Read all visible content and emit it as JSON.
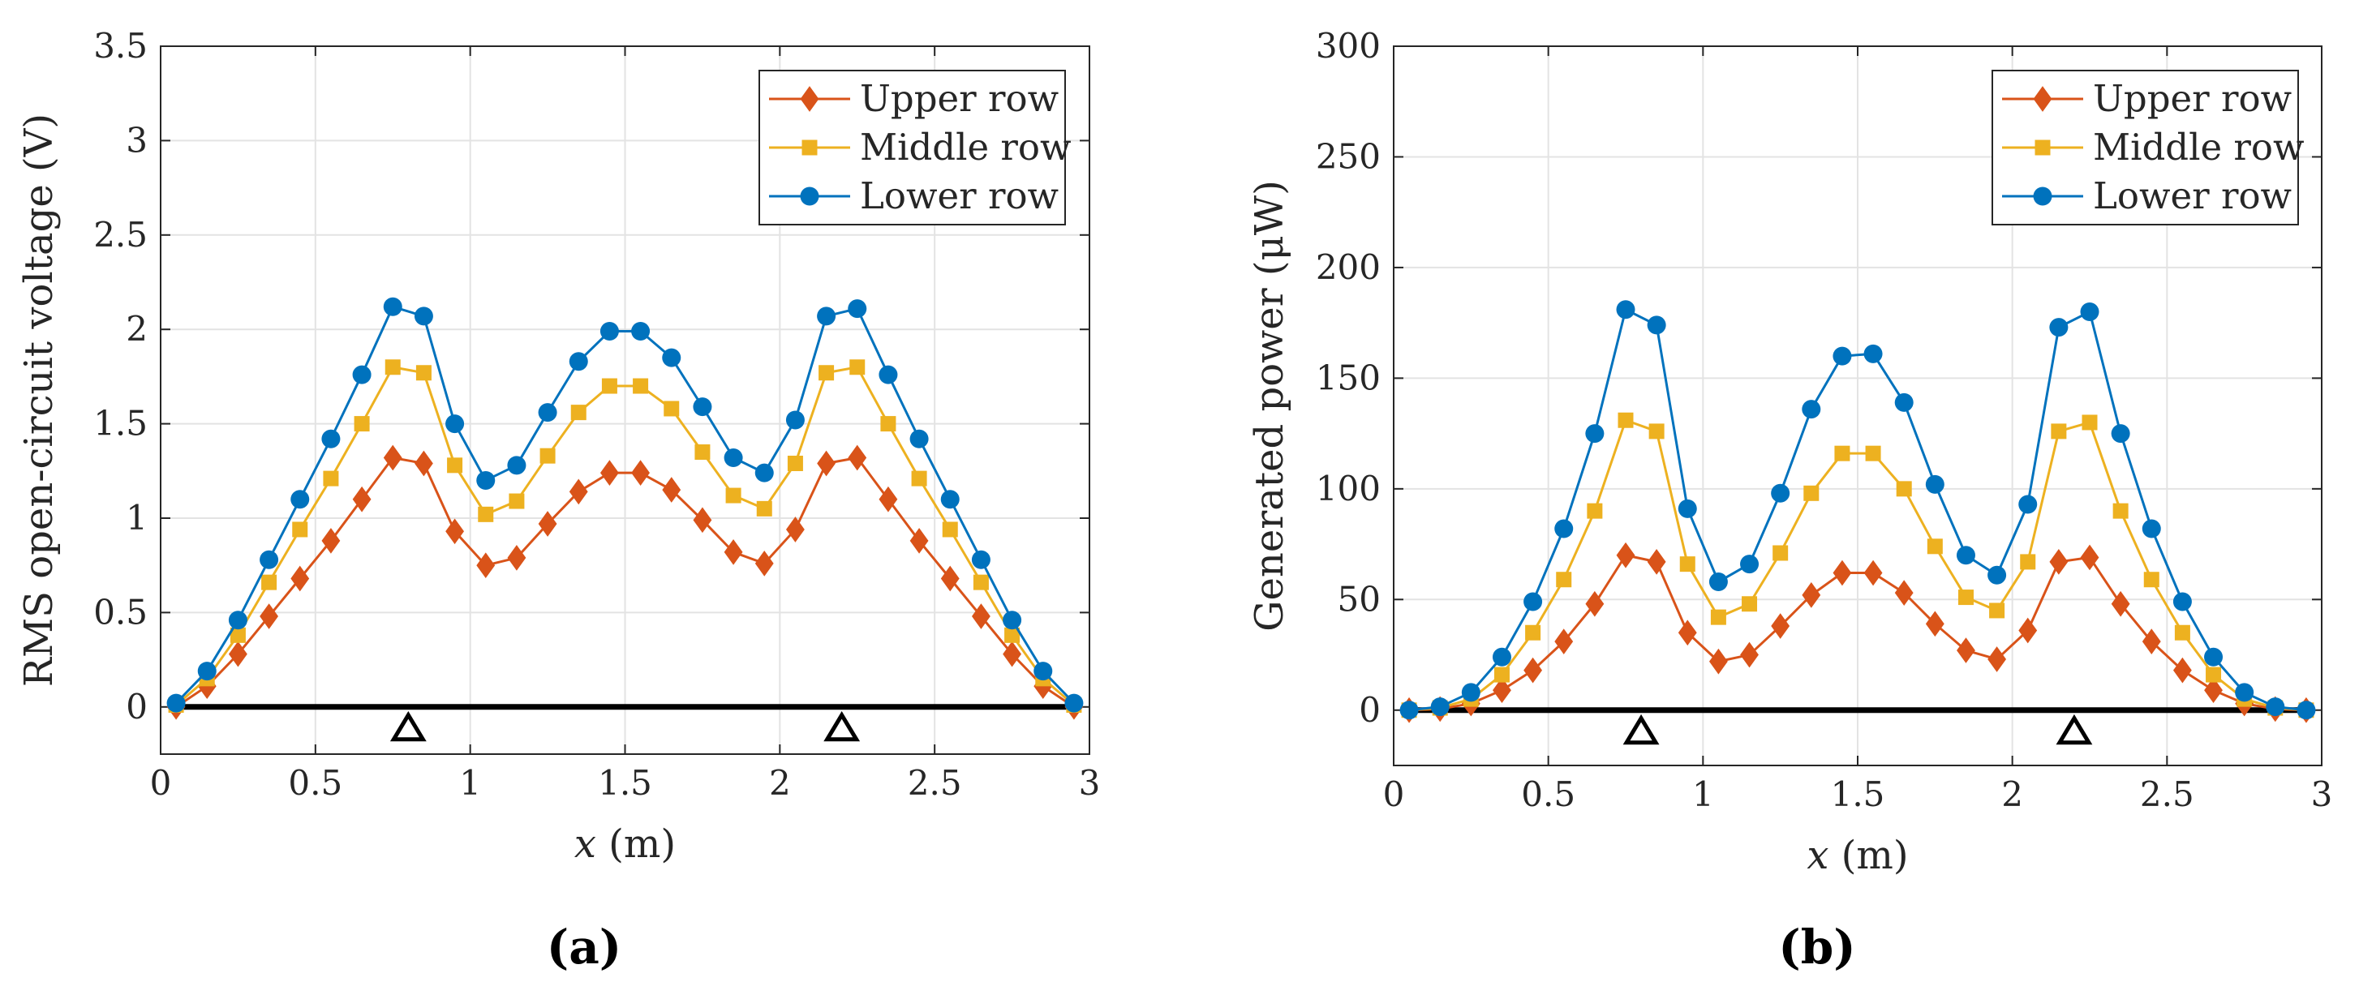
{
  "colors": {
    "upper": "#D95319",
    "middle": "#EDB120",
    "lower": "#0072BD",
    "grid": "#e3e3e3",
    "axis": "#262626",
    "beam": "#000000"
  },
  "chart_data": [
    {
      "type": "line",
      "panel_label": "(a)",
      "xlabel_var": "x",
      "xlabel_unit": " (m)",
      "ylabel": "RMS open-circuit voltage (V)",
      "xlim": [
        0,
        3
      ],
      "ylim": [
        -0.25,
        3.5
      ],
      "xticks": [
        0,
        0.5,
        1,
        1.5,
        2,
        2.5,
        3
      ],
      "yticks": [
        0,
        0.5,
        1,
        1.5,
        2,
        2.5,
        3,
        3.5
      ],
      "grid": true,
      "legend_position": "top-right",
      "supports_x": [
        0.8,
        2.2
      ],
      "beam": [
        0.05,
        2.95
      ],
      "x": [
        0.05,
        0.15,
        0.25,
        0.35,
        0.45,
        0.55,
        0.65,
        0.75,
        0.85,
        0.95,
        1.05,
        1.15,
        1.25,
        1.35,
        1.45,
        1.55,
        1.65,
        1.75,
        1.85,
        1.95,
        2.05,
        2.15,
        2.25,
        2.35,
        2.45,
        2.55,
        2.65,
        2.75,
        2.85,
        2.95
      ],
      "series": [
        {
          "name": "Upper row",
          "marker": "diamond",
          "color": "#D95319",
          "values": [
            0,
            0.11,
            0.28,
            0.48,
            0.68,
            0.88,
            1.1,
            1.32,
            1.29,
            0.93,
            0.75,
            0.79,
            0.97,
            1.14,
            1.24,
            1.24,
            1.15,
            0.99,
            0.82,
            0.76,
            0.94,
            1.29,
            1.32,
            1.1,
            0.88,
            0.68,
            0.48,
            0.28,
            0.11,
            0
          ]
        },
        {
          "name": "Middle row",
          "marker": "square",
          "color": "#EDB120",
          "values": [
            0.01,
            0.15,
            0.38,
            0.66,
            0.94,
            1.21,
            1.5,
            1.8,
            1.77,
            1.28,
            1.02,
            1.09,
            1.33,
            1.56,
            1.7,
            1.7,
            1.58,
            1.35,
            1.12,
            1.05,
            1.29,
            1.77,
            1.8,
            1.5,
            1.21,
            0.94,
            0.66,
            0.38,
            0.15,
            0.01
          ]
        },
        {
          "name": "Lower row",
          "marker": "circle",
          "color": "#0072BD",
          "values": [
            0.02,
            0.19,
            0.46,
            0.78,
            1.1,
            1.42,
            1.76,
            2.12,
            2.07,
            1.5,
            1.2,
            1.28,
            1.56,
            1.83,
            1.99,
            1.99,
            1.85,
            1.59,
            1.32,
            1.24,
            1.52,
            2.07,
            2.11,
            1.76,
            1.42,
            1.1,
            0.78,
            0.46,
            0.19,
            0.02
          ]
        }
      ]
    },
    {
      "type": "line",
      "panel_label": "(b)",
      "xlabel_var": "x",
      "xlabel_unit": " (m)",
      "ylabel": "Generated power (μW)",
      "xlim": [
        0,
        3
      ],
      "ylim": [
        -25,
        300
      ],
      "xticks": [
        0,
        0.5,
        1,
        1.5,
        2,
        2.5,
        3
      ],
      "yticks": [
        0,
        50,
        100,
        150,
        200,
        250,
        300
      ],
      "grid": true,
      "legend_position": "top-right",
      "supports_x": [
        0.8,
        2.2
      ],
      "beam": [
        0.05,
        2.95
      ],
      "x": [
        0.05,
        0.15,
        0.25,
        0.35,
        0.45,
        0.55,
        0.65,
        0.75,
        0.85,
        0.95,
        1.05,
        1.15,
        1.25,
        1.35,
        1.45,
        1.55,
        1.65,
        1.75,
        1.85,
        1.95,
        2.05,
        2.15,
        2.25,
        2.35,
        2.45,
        2.55,
        2.65,
        2.75,
        2.85,
        2.95
      ],
      "series": [
        {
          "name": "Upper row",
          "marker": "diamond",
          "color": "#D95319",
          "values": [
            0,
            0.5,
            3,
            9,
            18,
            31,
            48,
            70,
            67,
            35,
            22,
            25,
            38,
            52,
            62,
            62,
            53,
            39,
            27,
            23,
            36,
            67,
            69,
            48,
            31,
            18,
            9,
            3,
            0.5,
            0
          ]
        },
        {
          "name": "Middle row",
          "marker": "square",
          "color": "#EDB120",
          "values": [
            0,
            1,
            5,
            16,
            35,
            59,
            90,
            131,
            126,
            66,
            42,
            48,
            71,
            98,
            116,
            116,
            100,
            74,
            51,
            45,
            67,
            126,
            130,
            90,
            59,
            35,
            16,
            5,
            1,
            0
          ]
        },
        {
          "name": "Lower row",
          "marker": "circle",
          "color": "#0072BD",
          "values": [
            0,
            1.5,
            8,
            24,
            49,
            82,
            125,
            181,
            174,
            91,
            58,
            66,
            98,
            136,
            160,
            161,
            139,
            102,
            70,
            61,
            93,
            173,
            180,
            125,
            82,
            49,
            24,
            8,
            1.5,
            0
          ]
        }
      ]
    }
  ]
}
